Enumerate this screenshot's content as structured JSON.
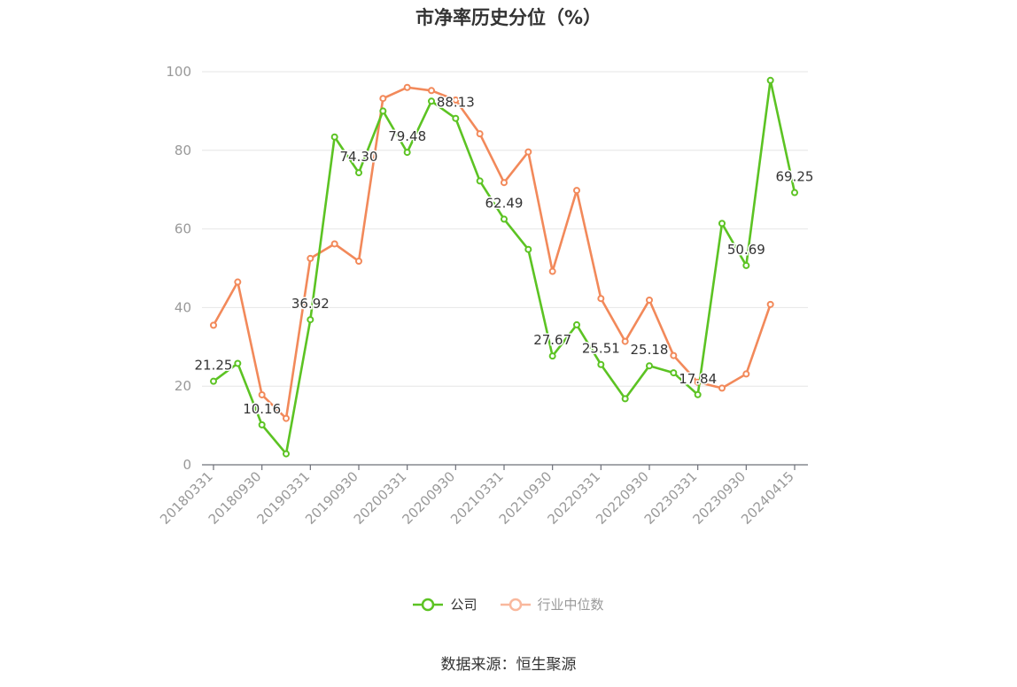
{
  "chart_data": {
    "type": "line",
    "title": "市净率历史分位（%）",
    "xlabel": "",
    "ylabel": "",
    "ylim": [
      0,
      100
    ],
    "yticks": [
      0,
      20,
      40,
      60,
      80,
      100
    ],
    "x": [
      "20180331",
      "20180630",
      "20180930",
      "20181231",
      "20190331",
      "20190630",
      "20190930",
      "20191231",
      "20200331",
      "20200630",
      "20200930",
      "20201231",
      "20210331",
      "20210630",
      "20210930",
      "20211231",
      "20220331",
      "20220630",
      "20220930",
      "20221231",
      "20230331",
      "20230630",
      "20230930",
      "20231231",
      "20240415"
    ],
    "xtick_labels": [
      "20180331",
      "20180930",
      "20190331",
      "20190930",
      "20200331",
      "20200930",
      "20210331",
      "20210930",
      "20220331",
      "20220930",
      "20230331",
      "20230930",
      "20240415"
    ],
    "grid": true,
    "legend_position": "bottom",
    "series": [
      {
        "name": "公司",
        "color": "#5cc323",
        "values": [
          21.25,
          25.8,
          10.16,
          2.8,
          36.92,
          83.4,
          74.3,
          90.0,
          79.48,
          92.5,
          88.13,
          72.2,
          62.49,
          54.8,
          27.67,
          35.6,
          25.51,
          16.8,
          25.18,
          23.4,
          17.84,
          61.4,
          50.69,
          97.8,
          69.25
        ],
        "data_labels": [
          {
            "index": 0,
            "text": "21.25"
          },
          {
            "index": 2,
            "text": "10.16"
          },
          {
            "index": 4,
            "text": "36.92"
          },
          {
            "index": 6,
            "text": "74.30"
          },
          {
            "index": 8,
            "text": "79.48"
          },
          {
            "index": 10,
            "text": "88.13"
          },
          {
            "index": 12,
            "text": "62.49"
          },
          {
            "index": 14,
            "text": "27.67"
          },
          {
            "index": 16,
            "text": "25.51"
          },
          {
            "index": 18,
            "text": "25.18"
          },
          {
            "index": 20,
            "text": "17.84"
          },
          {
            "index": 22,
            "text": "50.69"
          },
          {
            "index": 24,
            "text": "69.25"
          }
        ]
      },
      {
        "name": "行业中位数",
        "color": "#f2895a",
        "values": [
          35.5,
          46.5,
          17.8,
          11.8,
          52.5,
          56.2,
          51.8,
          93.2,
          96.0,
          95.2,
          92.8,
          84.2,
          71.8,
          79.6,
          49.2,
          69.8,
          42.3,
          31.4,
          41.9,
          27.8,
          21.0,
          19.5,
          23.1,
          40.8,
          null
        ]
      }
    ]
  },
  "legend": {
    "items": [
      {
        "label": "公司",
        "color": "#5cc323",
        "state": "active"
      },
      {
        "label": "行业中位数",
        "color": "#f9b89d",
        "state": "inactive"
      }
    ]
  },
  "source": "数据来源：恒生聚源"
}
